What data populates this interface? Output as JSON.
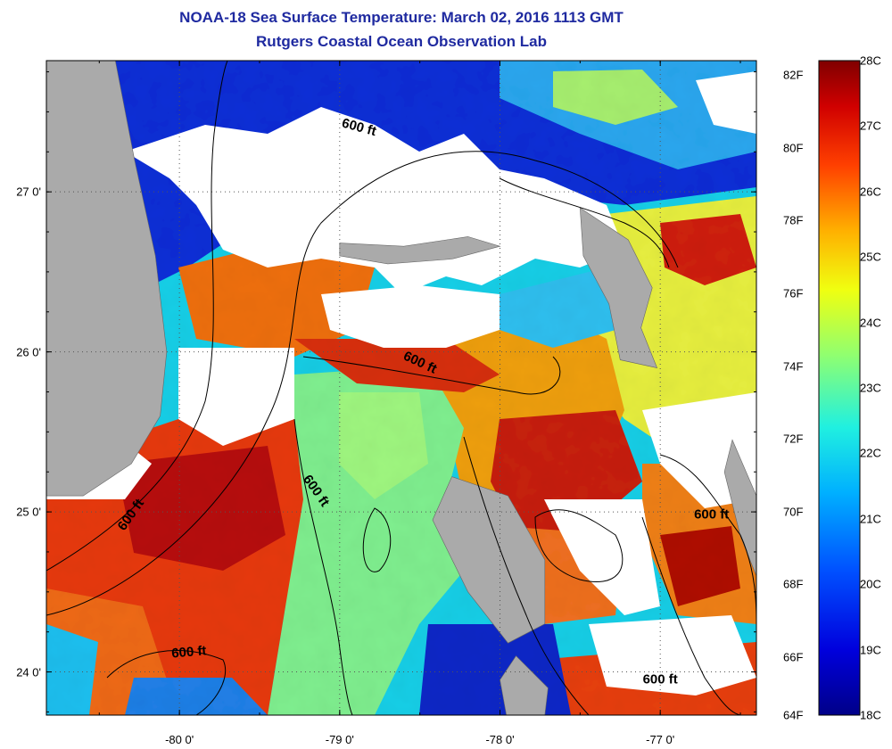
{
  "title": {
    "line1": "NOAA-18 Sea Surface Temperature:  March 02, 2016 1113 GMT",
    "line2": "Rutgers Coastal Ocean Observation Lab"
  },
  "axes": {
    "lat_ticks": [
      {
        "value": 27,
        "label": "27 0'"
      },
      {
        "value": 26,
        "label": "26 0'"
      },
      {
        "value": 25,
        "label": "25 0'"
      },
      {
        "value": 24,
        "label": "24 0'"
      }
    ],
    "lon_ticks": [
      {
        "value": -80,
        "label": "-80 0'"
      },
      {
        "value": -79,
        "label": "-79 0'"
      },
      {
        "value": -78,
        "label": "-78 0'"
      },
      {
        "value": -77,
        "label": "-77 0'"
      }
    ],
    "lat_range": [
      23.73,
      27.82
    ],
    "lon_range": [
      -80.83,
      -76.4
    ],
    "grid": "dotted"
  },
  "contours": {
    "label": "600 ft",
    "labels": [
      {
        "lon": -78.88,
        "lat": 27.4,
        "rotation": 15
      },
      {
        "lon": -78.5,
        "lat": 25.93,
        "rotation": 25
      },
      {
        "lon": -79.15,
        "lat": 25.13,
        "rotation": 55
      },
      {
        "lon": -80.3,
        "lat": 24.98,
        "rotation": -55
      },
      {
        "lon": -79.94,
        "lat": 24.12,
        "rotation": -5
      },
      {
        "lon": -76.68,
        "lat": 24.98,
        "rotation": 0
      },
      {
        "lon": -77.0,
        "lat": 23.95,
        "rotation": 0
      }
    ]
  },
  "colorbar": {
    "fahrenheit_labels": [
      "82F",
      "80F",
      "78F",
      "76F",
      "74F",
      "72F",
      "70F",
      "68F",
      "66F",
      "64F"
    ],
    "celsius_labels": [
      "28C",
      "27C",
      "26C",
      "25C",
      "24C",
      "23C",
      "22C",
      "21C",
      "20C",
      "19C",
      "18C"
    ],
    "min_c": 18,
    "max_c": 28
  },
  "colors": {
    "land": "#aaaaaa",
    "cloud": "#ffffff",
    "title": "#1f2aa0"
  },
  "regions": [
    {
      "name": "florida-land",
      "kind": "land",
      "points": [
        [
          -80.83,
          27.82
        ],
        [
          -80.4,
          27.82
        ],
        [
          -80.28,
          27.2
        ],
        [
          -80.15,
          26.6
        ],
        [
          -80.08,
          26.0
        ],
        [
          -80.12,
          25.6
        ],
        [
          -80.3,
          25.3
        ],
        [
          -80.6,
          25.1
        ],
        [
          -80.83,
          25.1
        ]
      ]
    },
    {
      "name": "grand-bahama-land",
      "kind": "land",
      "points": [
        [
          -79.0,
          26.68
        ],
        [
          -78.6,
          26.66
        ],
        [
          -78.2,
          26.72
        ],
        [
          -78.0,
          26.66
        ],
        [
          -78.3,
          26.58
        ],
        [
          -78.7,
          26.55
        ],
        [
          -79.0,
          26.6
        ]
      ]
    },
    {
      "name": "abaco-land",
      "kind": "land",
      "points": [
        [
          -77.5,
          26.9
        ],
        [
          -77.2,
          26.7
        ],
        [
          -77.05,
          26.4
        ],
        [
          -77.12,
          26.15
        ],
        [
          -77.02,
          25.9
        ],
        [
          -77.25,
          25.95
        ],
        [
          -77.32,
          26.3
        ],
        [
          -77.48,
          26.6
        ]
      ]
    },
    {
      "name": "andros-land",
      "kind": "land",
      "points": [
        [
          -78.3,
          25.22
        ],
        [
          -77.95,
          25.1
        ],
        [
          -77.72,
          24.7
        ],
        [
          -77.72,
          24.3
        ],
        [
          -77.95,
          24.18
        ],
        [
          -78.2,
          24.5
        ],
        [
          -78.42,
          24.95
        ]
      ]
    },
    {
      "name": "andros-south-land",
      "kind": "land",
      "points": [
        [
          -77.9,
          24.1
        ],
        [
          -77.7,
          23.9
        ],
        [
          -77.72,
          23.73
        ],
        [
          -77.96,
          23.73
        ],
        [
          -78.0,
          23.95
        ]
      ]
    },
    {
      "name": "eleuthera-land",
      "kind": "land",
      "points": [
        [
          -76.55,
          25.45
        ],
        [
          -76.4,
          25.1
        ],
        [
          -76.4,
          24.6
        ],
        [
          -76.5,
          24.85
        ],
        [
          -76.6,
          25.25
        ]
      ]
    }
  ]
}
